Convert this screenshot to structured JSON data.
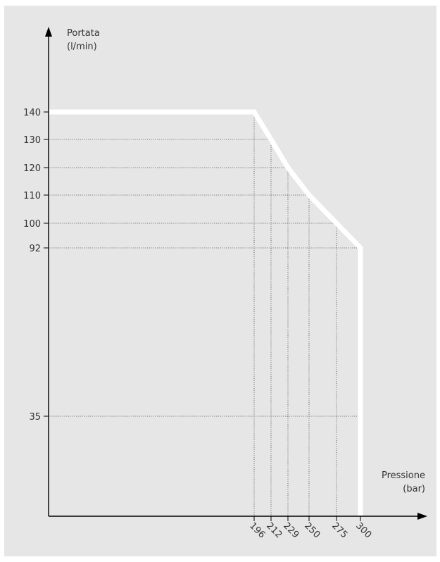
{
  "chart_data": {
    "type": "line",
    "ylabel_lines": [
      "Portata",
      "(l/min)"
    ],
    "xlabel_lines": [
      "Pressione",
      "(bar)"
    ],
    "y_ticks": [
      140,
      130,
      120,
      110,
      100,
      92,
      35
    ],
    "x_ticks": [
      196,
      212,
      229,
      250,
      275,
      300
    ],
    "series": [
      {
        "points": [
          {
            "x": 0,
            "y": 140
          },
          {
            "x": 196,
            "y": 140
          },
          {
            "x": 212,
            "y": 130
          },
          {
            "x": 229,
            "y": 120
          },
          {
            "x": 250,
            "y": 110
          },
          {
            "x": 275,
            "y": 100
          },
          {
            "x": 300,
            "y": 92
          },
          {
            "x": 300,
            "y": 0
          }
        ]
      }
    ],
    "guide_lines": [
      {
        "y": 140,
        "x_end": 196
      },
      {
        "y": 130,
        "x_end": 212
      },
      {
        "y": 120,
        "x_end": 229
      },
      {
        "y": 110,
        "x_end": 250
      },
      {
        "y": 100,
        "x_end": 275
      },
      {
        "y": 92,
        "x_end": 300
      },
      {
        "y": 35,
        "x_end": 300
      }
    ],
    "grid": false,
    "colors": {
      "panel": "#e6e6e6",
      "axis": "#000000",
      "curve": "#ffffff",
      "guide": "#555555",
      "text": "#333333"
    }
  }
}
